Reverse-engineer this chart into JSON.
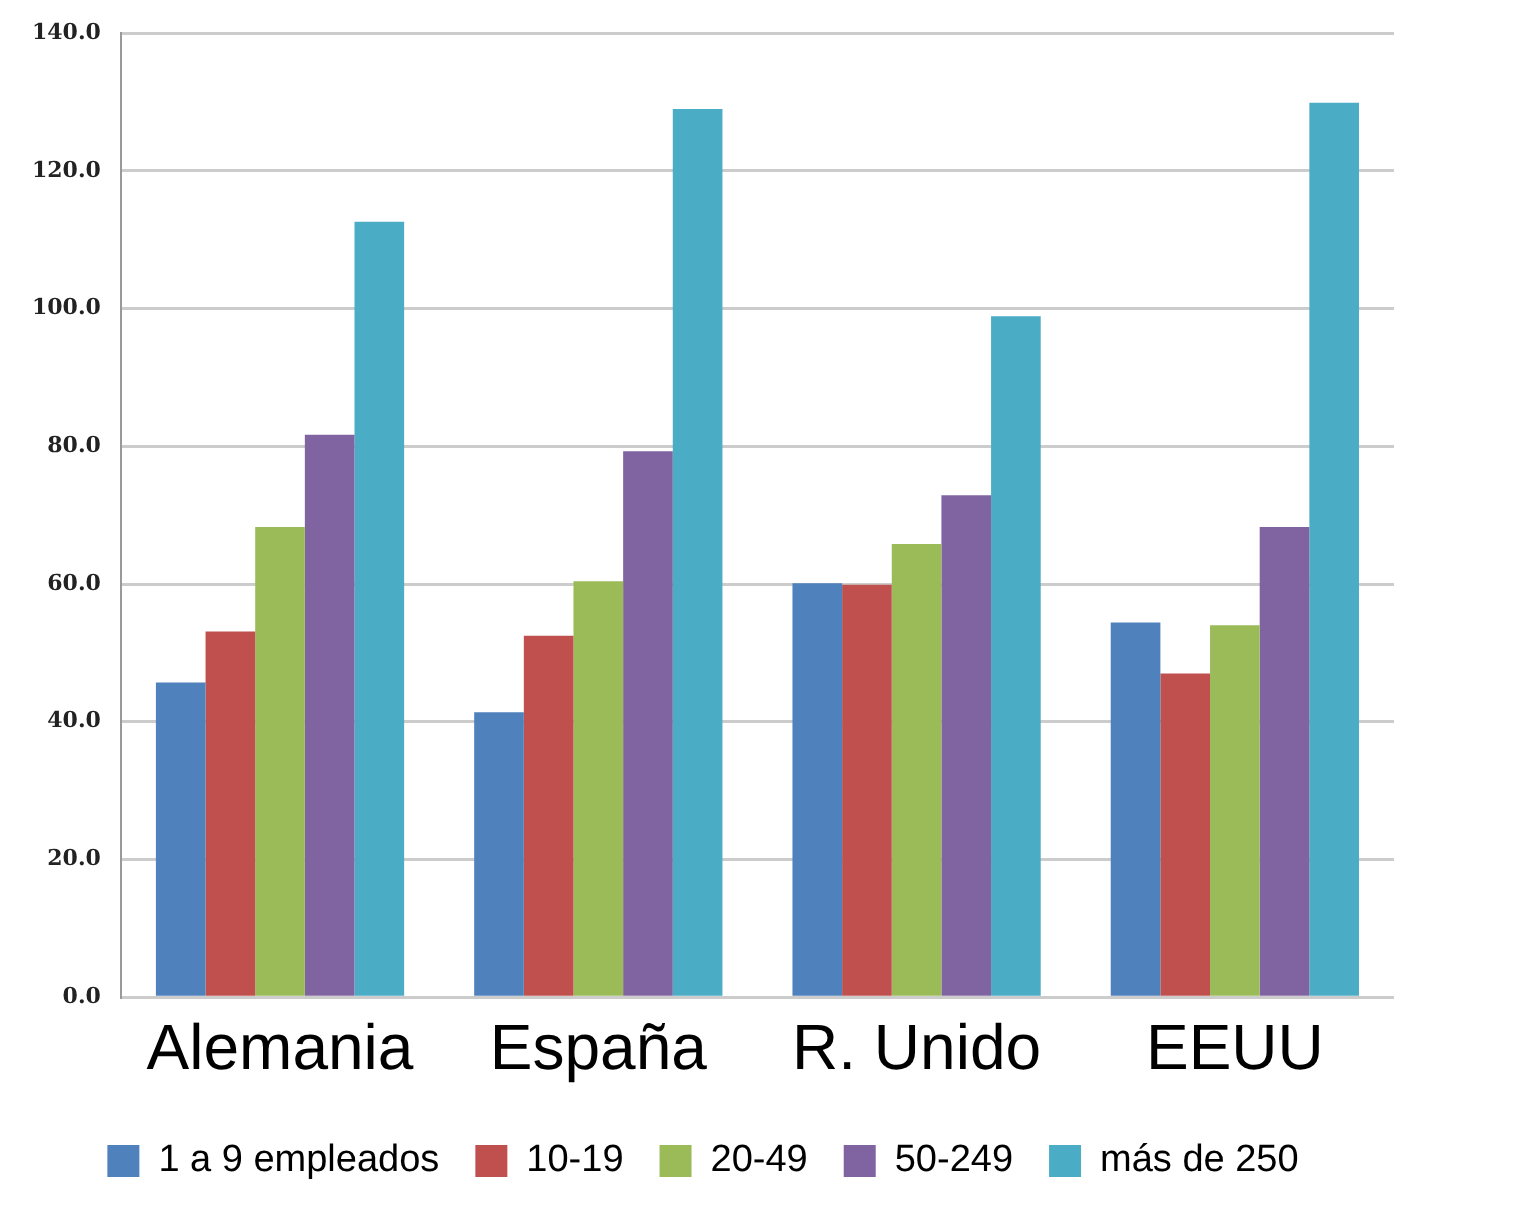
{
  "chart_data": {
    "type": "bar",
    "categories": [
      "Alemania",
      "España",
      "R. Unido",
      "EEUU"
    ],
    "series": [
      {
        "name": "1 a 9 empleados",
        "color": "#4f81bd",
        "values": [
          45.7,
          41.4,
          60.1,
          54.4
        ]
      },
      {
        "name": "10-19",
        "color": "#c0504d",
        "values": [
          53.1,
          52.5,
          59.9,
          47.0
        ]
      },
      {
        "name": "20-49",
        "color": "#9bbb59",
        "values": [
          68.3,
          60.4,
          65.8,
          54.0
        ]
      },
      {
        "name": "50-249",
        "color": "#8064a2",
        "values": [
          81.7,
          79.3,
          72.9,
          68.3
        ]
      },
      {
        "name": "más de 250",
        "color": "#4bacc6",
        "values": [
          112.6,
          129.0,
          98.9,
          129.9
        ]
      }
    ],
    "ylim": [
      0,
      140
    ],
    "yticks": [
      {
        "value": 0,
        "label": "0.0"
      },
      {
        "value": 20,
        "label": "20.0"
      },
      {
        "value": 40,
        "label": "40.0"
      },
      {
        "value": 60,
        "label": "60.0"
      },
      {
        "value": 80,
        "label": "80.0"
      },
      {
        "value": 100,
        "label": "100.0"
      },
      {
        "value": 120,
        "label": "120.0"
      },
      {
        "value": 140,
        "label": "140.0"
      }
    ],
    "grid": "y",
    "legend": "bottom"
  }
}
